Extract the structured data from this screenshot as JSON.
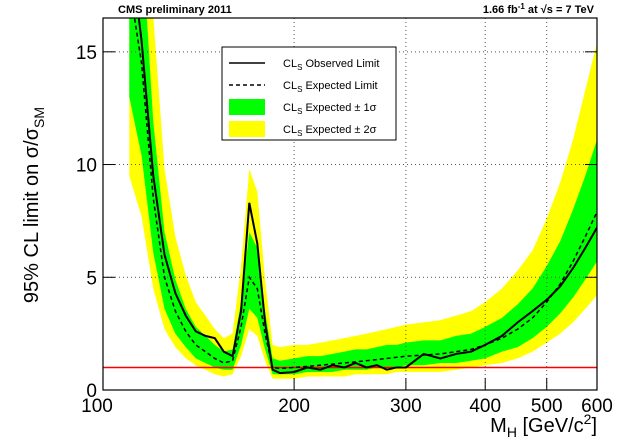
{
  "chart_data": {
    "type": "limit-bands",
    "title_left": "CMS preliminary 2011",
    "title_right": {
      "lumi": "1.66 fb",
      "lumi_sup": "-1",
      "at": " at ",
      "energy": "√s = 7 TeV"
    },
    "y_label": {
      "main": "95% CL limit on σ/σ",
      "sub": "SM"
    },
    "x_label": {
      "main": "M",
      "sub": "H",
      "unit": " [GeV/c",
      "sup": "2",
      "end": "]"
    },
    "legend_prefix": "CL",
    "legend_prefix_sub": "S",
    "x": [
      110,
      115,
      120,
      125,
      130,
      135,
      140,
      145,
      150,
      155,
      160,
      165,
      170,
      175,
      180,
      185,
      190,
      200,
      210,
      220,
      230,
      240,
      250,
      260,
      270,
      280,
      290,
      300,
      320,
      340,
      360,
      380,
      400,
      425,
      450,
      475,
      500,
      525,
      550,
      575,
      600
    ],
    "series": [
      {
        "name": " Observed Limit",
        "color": "#000000",
        "dash": false,
        "values": [
          20,
          15.5,
          9.5,
          6.0,
          4.3,
          3.3,
          2.6,
          2.4,
          2.3,
          1.7,
          1.5,
          3.5,
          8.3,
          6.5,
          3.0,
          0.9,
          0.75,
          0.8,
          1.0,
          0.9,
          1.1,
          1.0,
          1.2,
          1.0,
          1.1,
          0.9,
          1.0,
          1.0,
          1.6,
          1.4,
          1.6,
          1.7,
          2.0,
          2.4,
          3.0,
          3.5,
          4.0,
          4.6,
          5.4,
          6.3,
          7.2
        ]
      },
      {
        "name": " Expected Limit",
        "color": "#000000",
        "dash": true,
        "values": [
          18,
          14.5,
          8.5,
          5.0,
          3.5,
          2.6,
          2.0,
          1.7,
          1.4,
          1.2,
          1.3,
          2.8,
          5.0,
          4.5,
          2.5,
          1.0,
          0.95,
          1.0,
          1.05,
          1.1,
          1.15,
          1.2,
          1.25,
          1.3,
          1.35,
          1.4,
          1.45,
          1.5,
          1.55,
          1.6,
          1.7,
          1.8,
          2.0,
          2.3,
          2.7,
          3.2,
          3.9,
          4.7,
          5.7,
          6.8,
          7.9
        ]
      }
    ],
    "bands": [
      {
        "name": " Expected ± 1σ",
        "color": "#00ff00",
        "lower": [
          13.0,
          10.4,
          6.1,
          3.6,
          2.5,
          1.9,
          1.4,
          1.2,
          1.0,
          0.9,
          0.9,
          2.0,
          3.6,
          3.2,
          1.8,
          0.7,
          0.7,
          0.7,
          0.8,
          0.8,
          0.8,
          0.9,
          0.9,
          0.9,
          1.0,
          1.0,
          1.0,
          1.1,
          1.1,
          1.2,
          1.2,
          1.3,
          1.4,
          1.7,
          1.9,
          2.3,
          2.8,
          3.4,
          4.1,
          4.9,
          5.7
        ],
        "upper": [
          25.2,
          20.3,
          11.9,
          7.0,
          4.9,
          3.6,
          2.8,
          2.4,
          2.0,
          1.7,
          1.8,
          3.9,
          7.0,
          6.3,
          3.5,
          1.4,
          1.3,
          1.4,
          1.5,
          1.5,
          1.6,
          1.7,
          1.8,
          1.8,
          1.9,
          2.0,
          2.0,
          2.1,
          2.2,
          2.2,
          2.4,
          2.5,
          2.8,
          3.2,
          3.8,
          4.5,
          5.5,
          6.6,
          8.0,
          9.5,
          11.1
        ]
      },
      {
        "name": " Expected ± 2σ",
        "color": "#ffff00",
        "lower": [
          9.5,
          7.7,
          4.5,
          2.7,
          1.9,
          1.4,
          1.1,
          0.9,
          0.7,
          0.6,
          0.7,
          1.5,
          2.7,
          2.4,
          1.3,
          0.5,
          0.5,
          0.5,
          0.6,
          0.6,
          0.6,
          0.6,
          0.7,
          0.7,
          0.7,
          0.7,
          0.8,
          0.8,
          0.8,
          0.8,
          0.9,
          1.0,
          1.1,
          1.2,
          1.4,
          1.7,
          2.1,
          2.5,
          3.0,
          3.6,
          4.2
        ],
        "upper": [
          35.1,
          28.3,
          16.6,
          9.8,
          6.8,
          5.1,
          3.9,
          3.3,
          2.7,
          2.3,
          2.5,
          5.5,
          9.8,
          8.8,
          4.9,
          2.0,
          1.9,
          2.0,
          2.0,
          2.1,
          2.2,
          2.3,
          2.4,
          2.5,
          2.6,
          2.7,
          2.8,
          2.9,
          3.0,
          3.1,
          3.3,
          3.5,
          3.9,
          4.5,
          5.3,
          6.2,
          7.6,
          9.2,
          11.1,
          13.3,
          15.4
        ]
      }
    ],
    "reference": {
      "value": 1,
      "color": "#ff0000"
    },
    "xlim": [
      100,
      600
    ],
    "xticks": [
      100,
      200,
      300,
      400,
      500,
      600
    ],
    "log_x": true,
    "ylim": [
      0,
      16.5
    ],
    "yticks": [
      0,
      5,
      10,
      15
    ],
    "grid": true
  }
}
